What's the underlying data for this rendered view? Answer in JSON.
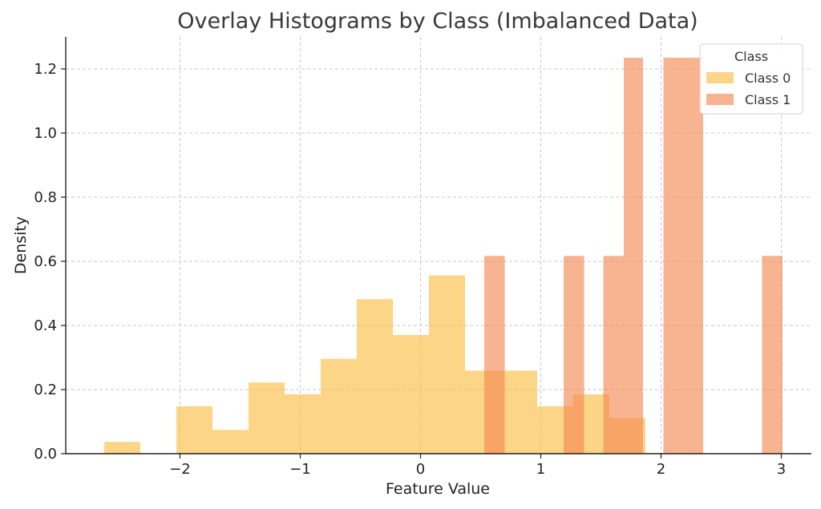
{
  "chart_data": {
    "type": "bar",
    "title": "Overlay Histograms by Class (Imbalanced Data)",
    "xlabel": "Feature Value",
    "ylabel": "Density",
    "xlim": [
      -2.95,
      3.25
    ],
    "ylim": [
      0,
      1.3
    ],
    "xticks": [
      -2,
      -1,
      0,
      1,
      2,
      3
    ],
    "xtick_labels": [
      "−2",
      "−1",
      "0",
      "1",
      "2",
      "3"
    ],
    "yticks": [
      0.0,
      0.2,
      0.4,
      0.6,
      0.8,
      1.0,
      1.2
    ],
    "ytick_labels": [
      "0.0",
      "0.2",
      "0.4",
      "0.6",
      "0.8",
      "1.0",
      "1.2"
    ],
    "grid": true,
    "legend": {
      "title": "Class",
      "position": "top-right"
    },
    "series": [
      {
        "name": "Class 0",
        "color": "#fbbf45",
        "alpha": 0.65,
        "bins": [
          {
            "x0": -2.63,
            "x1": -2.33,
            "y": 0.037
          },
          {
            "x0": -2.33,
            "x1": -2.03,
            "y": 0.0
          },
          {
            "x0": -2.03,
            "x1": -1.73,
            "y": 0.148
          },
          {
            "x0": -1.73,
            "x1": -1.43,
            "y": 0.074
          },
          {
            "x0": -1.43,
            "x1": -1.13,
            "y": 0.222
          },
          {
            "x0": -1.13,
            "x1": -0.83,
            "y": 0.185
          },
          {
            "x0": -0.83,
            "x1": -0.53,
            "y": 0.296
          },
          {
            "x0": -0.53,
            "x1": -0.23,
            "y": 0.482
          },
          {
            "x0": -0.23,
            "x1": 0.07,
            "y": 0.37
          },
          {
            "x0": 0.07,
            "x1": 0.37,
            "y": 0.556
          },
          {
            "x0": 0.37,
            "x1": 0.67,
            "y": 0.259
          },
          {
            "x0": 0.67,
            "x1": 0.97,
            "y": 0.259
          },
          {
            "x0": 0.97,
            "x1": 1.27,
            "y": 0.148
          },
          {
            "x0": 1.27,
            "x1": 1.57,
            "y": 0.185
          },
          {
            "x0": 1.57,
            "x1": 1.87,
            "y": 0.111
          }
        ]
      },
      {
        "name": "Class 1",
        "color": "#f48a55",
        "alpha": 0.65,
        "bins": [
          {
            "x0": 0.53,
            "x1": 0.7,
            "y": 0.617
          },
          {
            "x0": 1.19,
            "x1": 1.36,
            "y": 0.617
          },
          {
            "x0": 1.52,
            "x1": 1.69,
            "y": 0.617
          },
          {
            "x0": 1.69,
            "x1": 1.85,
            "y": 1.235
          },
          {
            "x0": 2.02,
            "x1": 2.19,
            "y": 1.235
          },
          {
            "x0": 2.19,
            "x1": 2.35,
            "y": 1.235
          },
          {
            "x0": 2.84,
            "x1": 3.01,
            "y": 0.617
          }
        ]
      }
    ]
  }
}
